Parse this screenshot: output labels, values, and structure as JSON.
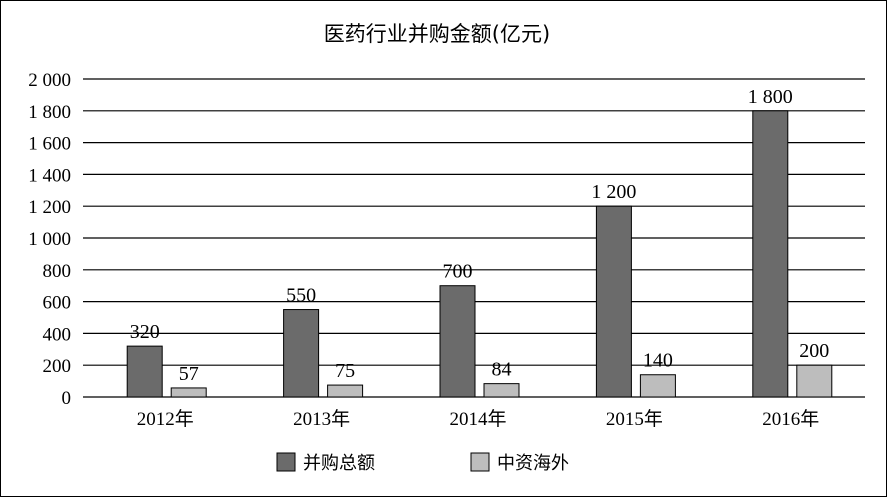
{
  "chart_data": {
    "type": "bar",
    "title": "医药行业并购金额(亿元)",
    "categories": [
      "2012年",
      "2013年",
      "2014年",
      "2015年",
      "2016年"
    ],
    "series": [
      {
        "name": "并购总额",
        "values": [
          320,
          550,
          700,
          1200,
          1800
        ],
        "labels": [
          "320",
          "550",
          "700",
          "1 200",
          "1 800"
        ],
        "color": "#6b6b6b"
      },
      {
        "name": "中资海外",
        "values": [
          57,
          75,
          84,
          140,
          200
        ],
        "labels": [
          "57",
          "75",
          "84",
          "140",
          "200"
        ],
        "color": "#bdbdbd"
      }
    ],
    "ylim": [
      0,
      2000
    ],
    "yticks": [
      0,
      200,
      400,
      600,
      800,
      1000,
      1200,
      1400,
      1600,
      1800,
      2000
    ],
    "ytick_labels": [
      "0",
      "200",
      "400",
      "600",
      "800",
      "1 000",
      "1 200",
      "1 400",
      "1 600",
      "1 800",
      "2 000"
    ],
    "grid": true,
    "legend_position": "bottom"
  }
}
